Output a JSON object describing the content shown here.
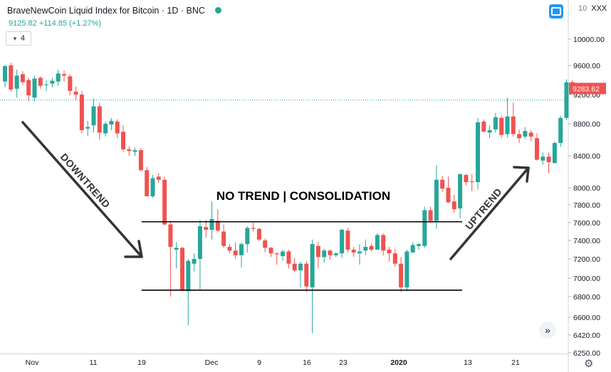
{
  "header": {
    "title": "BraveNewCoin Liquid Index for Bitcoin · 1D · BNC",
    "quote": "9125.82  +114.85 (+1.27%)",
    "indicator_count": "4",
    "ticker_prefix": "10",
    "ticker_name": "XXX",
    "icons": [
      "status-dot",
      "compare-icon",
      "chevron-down-icon",
      "scroll-right-icon",
      "gear-icon"
    ]
  },
  "colors": {
    "up": "#26a69a",
    "down": "#ef5350",
    "annotation": "#333333",
    "level_line": "#000000",
    "last_price": "#ef5350"
  },
  "chart_data": {
    "type": "candlestick",
    "title": "BraveNewCoin Liquid Index for Bitcoin",
    "interval": "1D",
    "ylim": [
      6250,
      10200
    ],
    "y_ticks": [
      "6250.00",
      "6420.00",
      "6600.00",
      "6800.00",
      "7000.00",
      "7200.00",
      "7400.00",
      "7600.00",
      "7800.00",
      "8000.00",
      "8400.00",
      "8800.00",
      "9200.00",
      "9600.00",
      "10000.00"
    ],
    "x_ticks": [
      "Nov",
      "11",
      "19",
      "Dec",
      "9",
      "16",
      "23",
      "2020",
      "13",
      "21"
    ],
    "last_price_label": "9283.62",
    "last_price": 9283.62,
    "reference_line": 9125.82,
    "candles": [
      [
        9380,
        9610,
        9300,
        9590
      ],
      [
        9600,
        9640,
        9240,
        9270
      ],
      [
        9280,
        9540,
        9160,
        9460
      ],
      [
        9480,
        9520,
        9330,
        9370
      ],
      [
        9400,
        9430,
        9110,
        9190
      ],
      [
        9160,
        9460,
        9110,
        9420
      ],
      [
        9430,
        9450,
        9280,
        9320
      ],
      [
        9330,
        9400,
        9250,
        9340
      ],
      [
        9350,
        9430,
        9300,
        9390
      ],
      [
        9380,
        9540,
        9320,
        9490
      ],
      [
        9480,
        9530,
        9380,
        9460
      ],
      [
        9450,
        9480,
        9190,
        9250
      ],
      [
        9240,
        9310,
        9130,
        9200
      ],
      [
        9200,
        9250,
        8680,
        8720
      ],
      [
        8740,
        8840,
        8650,
        8760
      ],
      [
        8780,
        9140,
        8690,
        9040
      ],
      [
        9040,
        9090,
        8600,
        8690
      ],
      [
        8680,
        8830,
        8640,
        8800
      ],
      [
        8790,
        8880,
        8720,
        8840
      ],
      [
        8830,
        8860,
        8620,
        8680
      ],
      [
        8700,
        8780,
        8450,
        8480
      ],
      [
        8480,
        8520,
        8400,
        8460
      ],
      [
        8450,
        8500,
        8400,
        8470
      ],
      [
        8470,
        8500,
        8200,
        8220
      ],
      [
        8220,
        8260,
        7900,
        7900
      ],
      [
        7900,
        8160,
        7880,
        8120
      ],
      [
        8140,
        8180,
        8060,
        8100
      ],
      [
        8100,
        8140,
        7570,
        7580
      ],
      [
        7580,
        7610,
        6800,
        7330
      ],
      [
        7300,
        7380,
        7100,
        7320
      ],
      [
        7320,
        7330,
        6860,
        6870
      ],
      [
        6860,
        7200,
        6520,
        7180
      ],
      [
        7150,
        7260,
        7070,
        7200
      ],
      [
        7200,
        7630,
        6880,
        7560
      ],
      [
        7550,
        7630,
        7430,
        7520
      ],
      [
        7520,
        7840,
        7410,
        7640
      ],
      [
        7620,
        7750,
        7490,
        7510
      ],
      [
        7500,
        7580,
        7320,
        7340
      ],
      [
        7330,
        7360,
        7260,
        7290
      ],
      [
        7290,
        7380,
        7200,
        7240
      ],
      [
        7240,
        7380,
        7110,
        7360
      ],
      [
        7360,
        7560,
        7270,
        7540
      ],
      [
        7540,
        7600,
        7500,
        7530
      ],
      [
        7530,
        7540,
        7390,
        7410
      ],
      [
        7400,
        7420,
        7270,
        7320
      ],
      [
        7320,
        7330,
        7220,
        7260
      ],
      [
        7260,
        7270,
        7140,
        7250
      ],
      [
        7230,
        7300,
        7180,
        7280
      ],
      [
        7280,
        7300,
        7100,
        7150
      ],
      [
        7150,
        7210,
        7060,
        7080
      ],
      [
        7080,
        7170,
        6900,
        7150
      ],
      [
        7150,
        7180,
        6850,
        6910
      ],
      [
        6900,
        7410,
        6440,
        7360
      ],
      [
        7340,
        7380,
        7100,
        7220
      ],
      [
        7220,
        7310,
        7160,
        7290
      ],
      [
        7290,
        7300,
        7190,
        7240
      ],
      [
        7240,
        7270,
        7220,
        7260
      ],
      [
        7260,
        7530,
        7210,
        7520
      ],
      [
        7510,
        7540,
        7270,
        7300
      ],
      [
        7300,
        7330,
        7220,
        7270
      ],
      [
        7260,
        7360,
        7140,
        7280
      ],
      [
        7290,
        7410,
        7240,
        7330
      ],
      [
        7340,
        7370,
        7280,
        7300
      ],
      [
        7300,
        7480,
        7300,
        7460
      ],
      [
        7460,
        7480,
        7240,
        7290
      ],
      [
        7300,
        7330,
        7170,
        7260
      ],
      [
        7260,
        7310,
        7120,
        7150
      ],
      [
        7150,
        7220,
        6850,
        6900
      ],
      [
        6900,
        7300,
        6860,
        7280
      ],
      [
        7270,
        7380,
        7260,
        7350
      ],
      [
        7340,
        7370,
        7300,
        7360
      ],
      [
        7340,
        7780,
        7320,
        7740
      ],
      [
        7740,
        7780,
        7600,
        7620
      ],
      [
        7620,
        8280,
        7530,
        8100
      ],
      [
        8100,
        8150,
        7950,
        7990
      ],
      [
        8000,
        8140,
        7820,
        7830
      ],
      [
        7840,
        7920,
        7710,
        7750
      ],
      [
        7760,
        8180,
        7650,
        8170
      ],
      [
        8160,
        8180,
        8030,
        8070
      ],
      [
        8080,
        8170,
        7960,
        8070
      ],
      [
        8070,
        8880,
        7980,
        8820
      ],
      [
        8830,
        8860,
        8700,
        8700
      ],
      [
        8690,
        8780,
        8620,
        8720
      ],
      [
        8730,
        8950,
        8690,
        8890
      ],
      [
        8880,
        8910,
        8620,
        8660
      ],
      [
        8670,
        9160,
        8630,
        8900
      ],
      [
        8900,
        9090,
        8640,
        8670
      ],
      [
        8670,
        8730,
        8560,
        8620
      ],
      [
        8640,
        8760,
        8610,
        8710
      ],
      [
        8690,
        8720,
        8580,
        8640
      ],
      [
        8620,
        8680,
        8340,
        8350
      ],
      [
        8340,
        8440,
        8290,
        8390
      ],
      [
        8390,
        8440,
        8180,
        8320
      ],
      [
        8310,
        8580,
        8300,
        8560
      ],
      [
        8560,
        8910,
        8510,
        8880
      ],
      [
        8880,
        9410,
        8850,
        9370
      ],
      [
        9370,
        9400,
        9280,
        9300
      ]
    ],
    "annotations": [
      {
        "text": "DOWNTREND",
        "kind": "arrow"
      },
      {
        "text": "NO TREND | CONSOLIDATION",
        "kind": "label"
      },
      {
        "text": "UPTREND",
        "kind": "arrow"
      }
    ],
    "support_level": 6870,
    "resistance_level": 7610
  }
}
